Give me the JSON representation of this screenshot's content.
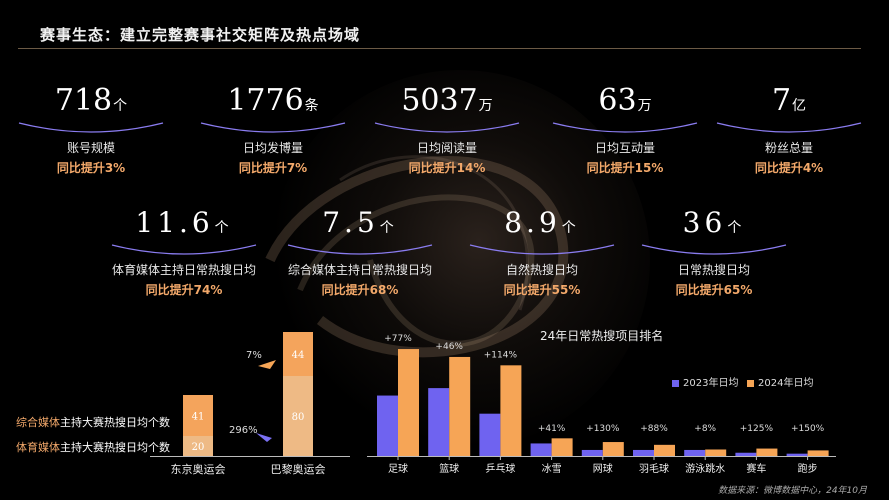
{
  "title": "赛事生态：建立完整赛事社交矩阵及热点场域",
  "stats_row1": [
    {
      "value": "718",
      "unit": "个",
      "label": "账号规模",
      "yoy": "同比提升3%"
    },
    {
      "value": "1776",
      "unit": "条",
      "label": "日均发博量",
      "yoy": "同比提升7%"
    },
    {
      "value": "5037",
      "unit": "万",
      "label": "日均阅读量",
      "yoy": "同比提升14%"
    },
    {
      "value": "63",
      "unit": "万",
      "label": "日均互动量",
      "yoy": "同比提升15%"
    },
    {
      "value": "7",
      "unit": "亿",
      "label": "粉丝总量",
      "yoy": "同比提升4%"
    }
  ],
  "stats_row2": [
    {
      "value": "11.6",
      "unit": "个",
      "label": "体育媒体主持日常热搜日均",
      "yoy": "同比提升74%"
    },
    {
      "value": "7.5",
      "unit": "个",
      "label": "综合媒体主持日常热搜日均",
      "yoy": "同比提升68%"
    },
    {
      "value": "8.9",
      "unit": "个",
      "label": "自然热搜日均",
      "yoy": "同比提升55%"
    },
    {
      "value": "36",
      "unit": "个",
      "label": "日常热搜日均",
      "yoy": "同比提升65%"
    }
  ],
  "left_legend": {
    "item1_accent": "综合媒体",
    "item1_rest": "主持大赛热搜日均个数",
    "item2_accent": "体育媒体",
    "item2_rest": "主持大赛热搜日均个数"
  },
  "right_legend": {
    "a": "2023年日均",
    "b": "2024年日均"
  },
  "source": "数据来源：微博数据中心，24年10月",
  "colors": {
    "accent": "#f2a86a",
    "purple": "#6f63f0",
    "orange": "#f6a556",
    "bar_light": "#f7c79a"
  },
  "chart_data": [
    {
      "type": "bar",
      "stacked": true,
      "categories": [
        "东京奥运会",
        "巴黎奥运会"
      ],
      "series": [
        {
          "name": "体育媒体主持大赛热搜日均个数",
          "values": [
            20,
            80
          ]
        },
        {
          "name": "综合媒体主持大赛热搜日均个数",
          "values": [
            41,
            44
          ]
        }
      ],
      "annotations": [
        {
          "text": "296%",
          "target": "体育媒体 东京→巴黎"
        },
        {
          "text": "7%",
          "target": "综合媒体 东京→巴黎"
        }
      ],
      "title": ""
    },
    {
      "type": "bar",
      "title": "24年日常热搜项目排名",
      "categories": [
        "足球",
        "篮球",
        "乒乓球",
        "冰雪",
        "网球",
        "羽毛球",
        "游泳跳水",
        "赛车",
        "跑步"
      ],
      "series": [
        {
          "name": "2023年日均",
          "values": [
            13.0,
            14.6,
            9.1,
            2.7,
            1.3,
            1.3,
            1.3,
            0.7,
            0.5
          ]
        },
        {
          "name": "2024年日均",
          "values": [
            23.0,
            21.3,
            19.5,
            3.8,
            3.0,
            2.4,
            1.4,
            1.6,
            1.2
          ]
        }
      ],
      "change_labels": [
        "+77%",
        "+46%",
        "+114%",
        "+41%",
        "+130%",
        "+88%",
        "+8%",
        "+125%",
        "+150%"
      ]
    }
  ]
}
